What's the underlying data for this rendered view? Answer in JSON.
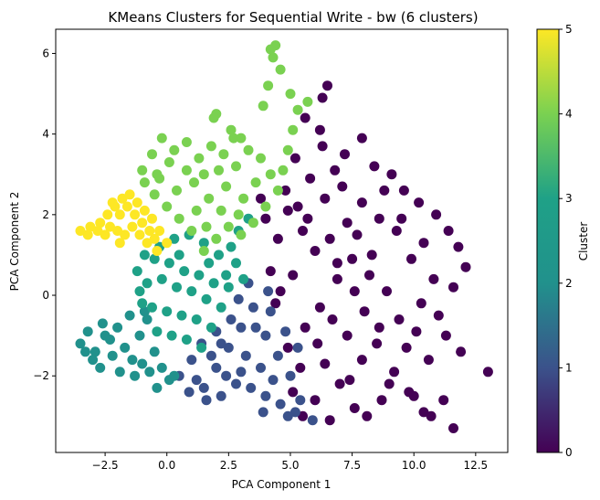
{
  "chart_data": {
    "type": "scatter",
    "title": "KMeans Clusters for Sequential Write - bw (6 clusters)",
    "xlabel": "PCA Component 1",
    "ylabel": "PCA Component 2",
    "xlim": [
      -4.5,
      13.8
    ],
    "ylim": [
      -3.9,
      6.6
    ],
    "xticks": [
      -2.5,
      0.0,
      2.5,
      5.0,
      7.5,
      10.0,
      12.5
    ],
    "xtick_labels": [
      "−2.5",
      "0.0",
      "2.5",
      "5.0",
      "7.5",
      "10.0",
      "12.5"
    ],
    "yticks": [
      -2,
      0,
      2,
      4,
      6
    ],
    "ytick_labels": [
      "−2",
      "0",
      "2",
      "4",
      "6"
    ],
    "grid": false,
    "colorbar": {
      "label": "Cluster",
      "range": [
        0,
        5
      ],
      "ticks": [
        0,
        1,
        2,
        3,
        4,
        5
      ],
      "tick_labels": [
        "0",
        "1",
        "2",
        "3",
        "4",
        "5"
      ],
      "colormap": "viridis"
    },
    "cluster_colors": [
      "#440154",
      "#3b528b",
      "#21918c",
      "#1fa187",
      "#7ad151",
      "#fde725"
    ],
    "series": [
      {
        "cluster": 0,
        "points": [
          [
            5.2,
            3.4
          ],
          [
            5.8,
            2.9
          ],
          [
            6.3,
            3.7
          ],
          [
            6.8,
            3.1
          ],
          [
            7.2,
            3.5
          ],
          [
            7.9,
            3.9
          ],
          [
            8.4,
            3.2
          ],
          [
            9.1,
            3.0
          ],
          [
            9.6,
            2.6
          ],
          [
            10.2,
            2.3
          ],
          [
            10.9,
            2.0
          ],
          [
            11.4,
            1.6
          ],
          [
            11.8,
            1.2
          ],
          [
            12.1,
            0.7
          ],
          [
            11.6,
            0.2
          ],
          [
            11.0,
            -0.5
          ],
          [
            11.3,
            -1.0
          ],
          [
            11.9,
            -1.4
          ],
          [
            13.0,
            -1.9
          ],
          [
            11.2,
            -2.6
          ],
          [
            11.6,
            -3.3
          ],
          [
            10.4,
            -2.9
          ],
          [
            9.8,
            -2.4
          ],
          [
            9.2,
            -1.9
          ],
          [
            8.7,
            -2.6
          ],
          [
            8.1,
            -3.0
          ],
          [
            7.6,
            -2.8
          ],
          [
            7.0,
            -2.2
          ],
          [
            6.4,
            -1.7
          ],
          [
            6.0,
            -2.6
          ],
          [
            5.5,
            -3.0
          ],
          [
            5.1,
            -2.4
          ],
          [
            4.9,
            -1.3
          ],
          [
            5.6,
            -0.8
          ],
          [
            6.2,
            -0.3
          ],
          [
            6.9,
            0.4
          ],
          [
            7.5,
            0.9
          ],
          [
            8.2,
            0.5
          ],
          [
            8.9,
            0.1
          ],
          [
            9.4,
            -0.6
          ],
          [
            10.1,
            -0.9
          ],
          [
            10.6,
            -1.6
          ],
          [
            9.9,
            0.9
          ],
          [
            9.3,
            1.6
          ],
          [
            8.6,
            1.9
          ],
          [
            7.9,
            2.3
          ],
          [
            7.3,
            1.8
          ],
          [
            6.6,
            1.4
          ],
          [
            6.0,
            1.1
          ],
          [
            5.5,
            1.6
          ],
          [
            4.9,
            2.1
          ],
          [
            4.5,
            1.4
          ],
          [
            4.2,
            0.6
          ],
          [
            4.6,
            0.1
          ],
          [
            5.1,
            0.5
          ],
          [
            5.7,
            1.9
          ],
          [
            6.4,
            2.4
          ],
          [
            7.1,
            2.7
          ],
          [
            7.7,
            1.5
          ],
          [
            8.3,
            1.0
          ],
          [
            8.8,
            2.6
          ],
          [
            9.5,
            1.9
          ],
          [
            10.4,
            1.3
          ],
          [
            10.8,
            0.4
          ],
          [
            10.3,
            -0.2
          ],
          [
            9.7,
            -1.3
          ],
          [
            8.5,
            -1.2
          ],
          [
            7.9,
            -1.6
          ],
          [
            7.3,
            -1.0
          ],
          [
            6.7,
            -0.6
          ],
          [
            6.1,
            -1.2
          ],
          [
            5.4,
            -1.8
          ],
          [
            6.6,
            -3.1
          ],
          [
            7.4,
            -2.1
          ],
          [
            8.0,
            -0.4
          ],
          [
            6.3,
            4.9
          ],
          [
            6.5,
            5.2
          ],
          [
            5.6,
            4.4
          ],
          [
            6.2,
            4.1
          ],
          [
            4.8,
            2.6
          ],
          [
            5.3,
            2.2
          ],
          [
            6.9,
            0.8
          ],
          [
            7.6,
            0.1
          ],
          [
            8.6,
            -0.8
          ],
          [
            9.0,
            -2.2
          ],
          [
            10.0,
            -2.5
          ],
          [
            10.7,
            -3.0
          ],
          [
            4.4,
            -0.2
          ],
          [
            4.0,
            1.9
          ],
          [
            3.8,
            2.4
          ]
        ]
      },
      {
        "cluster": 1,
        "points": [
          [
            1.5,
            -2.3
          ],
          [
            2.0,
            -1.8
          ],
          [
            2.5,
            -1.3
          ],
          [
            3.0,
            -0.8
          ],
          [
            3.5,
            -0.3
          ],
          [
            4.0,
            -1.0
          ],
          [
            4.5,
            -1.5
          ],
          [
            5.0,
            -2.0
          ],
          [
            5.4,
            -2.6
          ],
          [
            5.9,
            -3.1
          ],
          [
            5.2,
            -2.9
          ],
          [
            4.6,
            -2.7
          ],
          [
            4.0,
            -2.5
          ],
          [
            3.4,
            -2.3
          ],
          [
            2.8,
            -2.2
          ],
          [
            2.2,
            -2.5
          ],
          [
            1.6,
            -2.6
          ],
          [
            1.2,
            -2.1
          ],
          [
            1.0,
            -1.6
          ],
          [
            1.4,
            -1.2
          ],
          [
            2.0,
            -0.9
          ],
          [
            2.6,
            -0.6
          ],
          [
            3.2,
            -1.5
          ],
          [
            3.8,
            -1.8
          ],
          [
            4.3,
            -2.1
          ],
          [
            2.4,
            -2.0
          ],
          [
            3.0,
            -1.9
          ],
          [
            3.6,
            -0.8
          ],
          [
            4.2,
            -0.4
          ],
          [
            4.8,
            -0.9
          ],
          [
            3.3,
            0.3
          ],
          [
            2.9,
            -0.1
          ],
          [
            4.1,
            0.1
          ],
          [
            5.3,
            -1.3
          ],
          [
            1.8,
            -1.5
          ],
          [
            2.2,
            -1.2
          ],
          [
            3.9,
            -2.9
          ],
          [
            4.9,
            -3.0
          ],
          [
            0.5,
            -2.0
          ],
          [
            0.9,
            -2.4
          ]
        ]
      },
      {
        "cluster": 2,
        "points": [
          [
            -3.5,
            -1.2
          ],
          [
            -3.2,
            -0.9
          ],
          [
            -2.9,
            -1.4
          ],
          [
            -2.6,
            -0.7
          ],
          [
            -2.3,
            -1.1
          ],
          [
            -2.0,
            -0.8
          ],
          [
            -1.7,
            -1.3
          ],
          [
            -1.4,
            -1.6
          ],
          [
            -1.1,
            -1.0
          ],
          [
            -0.8,
            -0.6
          ],
          [
            -0.5,
            -1.4
          ],
          [
            -0.2,
            -1.8
          ],
          [
            0.1,
            -2.1
          ],
          [
            -0.7,
            -1.9
          ],
          [
            -1.3,
            -2.0
          ],
          [
            -2.2,
            -1.5
          ],
          [
            -3.0,
            -1.6
          ],
          [
            -3.3,
            -1.4
          ],
          [
            -2.7,
            -1.8
          ],
          [
            -1.9,
            -1.9
          ],
          [
            -1.0,
            -1.7
          ],
          [
            -0.4,
            -2.3
          ],
          [
            0.3,
            -2.0
          ],
          [
            -1.5,
            -0.5
          ],
          [
            -2.5,
            -1.0
          ],
          [
            -0.9,
            -0.4
          ]
        ]
      },
      {
        "cluster": 3,
        "points": [
          [
            -1.2,
            0.6
          ],
          [
            -0.8,
            0.3
          ],
          [
            -0.5,
            0.9
          ],
          [
            -0.2,
            0.4
          ],
          [
            0.1,
            0.8
          ],
          [
            0.4,
            0.2
          ],
          [
            0.7,
            0.6
          ],
          [
            1.0,
            0.1
          ],
          [
            1.3,
            0.5
          ],
          [
            1.6,
            -0.1
          ],
          [
            1.9,
            0.3
          ],
          [
            2.2,
            -0.3
          ],
          [
            2.5,
            0.2
          ],
          [
            2.8,
            0.8
          ],
          [
            3.1,
            0.4
          ],
          [
            2.6,
            1.2
          ],
          [
            2.1,
            1.0
          ],
          [
            1.5,
            1.3
          ],
          [
            0.9,
            1.5
          ],
          [
            0.3,
            1.4
          ],
          [
            -0.3,
            1.2
          ],
          [
            -0.9,
            1.0
          ],
          [
            -1.1,
            0.1
          ],
          [
            -0.6,
            -0.3
          ],
          [
            0.0,
            -0.4
          ],
          [
            0.6,
            -0.5
          ],
          [
            1.2,
            -0.6
          ],
          [
            1.8,
            -0.8
          ],
          [
            -0.4,
            -0.9
          ],
          [
            0.2,
            -1.0
          ],
          [
            0.8,
            -1.1
          ],
          [
            1.4,
            -1.3
          ],
          [
            -1.0,
            -0.2
          ],
          [
            2.9,
            1.6
          ],
          [
            3.3,
            1.9
          ],
          [
            2.4,
            0.5
          ],
          [
            1.7,
            0.8
          ],
          [
            0.5,
            1.0
          ]
        ]
      },
      {
        "cluster": 4,
        "points": [
          [
            -1.0,
            3.1
          ],
          [
            -0.6,
            3.5
          ],
          [
            -0.2,
            3.9
          ],
          [
            0.3,
            3.6
          ],
          [
            0.8,
            3.8
          ],
          [
            1.3,
            3.4
          ],
          [
            1.8,
            3.7
          ],
          [
            2.3,
            3.5
          ],
          [
            2.8,
            3.2
          ],
          [
            3.3,
            3.6
          ],
          [
            3.8,
            3.4
          ],
          [
            4.2,
            3.0
          ],
          [
            4.5,
            2.6
          ],
          [
            4.0,
            2.2
          ],
          [
            3.5,
            1.8
          ],
          [
            3.0,
            1.5
          ],
          [
            2.5,
            1.7
          ],
          [
            2.0,
            1.4
          ],
          [
            1.5,
            1.1
          ],
          [
            1.0,
            1.6
          ],
          [
            0.5,
            1.9
          ],
          [
            0.0,
            2.2
          ],
          [
            -0.5,
            2.5
          ],
          [
            -0.9,
            2.8
          ],
          [
            -0.3,
            2.9
          ],
          [
            0.4,
            2.6
          ],
          [
            1.1,
            2.8
          ],
          [
            1.7,
            2.4
          ],
          [
            2.4,
            2.7
          ],
          [
            3.1,
            2.4
          ],
          [
            3.6,
            2.8
          ],
          [
            0.8,
            3.1
          ],
          [
            1.5,
            3.0
          ],
          [
            2.1,
            3.1
          ],
          [
            2.7,
            3.9
          ],
          [
            2.0,
            4.5
          ],
          [
            1.9,
            4.4
          ],
          [
            2.6,
            4.1
          ],
          [
            3.0,
            3.9
          ],
          [
            3.9,
            4.7
          ],
          [
            4.1,
            5.2
          ],
          [
            4.3,
            5.9
          ],
          [
            4.4,
            6.2
          ],
          [
            4.2,
            6.1
          ],
          [
            4.6,
            5.6
          ],
          [
            5.0,
            5.0
          ],
          [
            5.3,
            4.6
          ],
          [
            5.7,
            4.8
          ],
          [
            4.9,
            3.6
          ],
          [
            4.7,
            3.1
          ],
          [
            5.1,
            4.1
          ],
          [
            0.1,
            3.3
          ],
          [
            -0.4,
            3.0
          ],
          [
            1.2,
            2.1
          ],
          [
            2.2,
            2.1
          ],
          [
            2.9,
            2.0
          ],
          [
            1.6,
            1.7
          ]
        ]
      },
      {
        "cluster": 5,
        "points": [
          [
            -3.5,
            1.6
          ],
          [
            -3.1,
            1.7
          ],
          [
            -2.7,
            1.8
          ],
          [
            -2.4,
            2.0
          ],
          [
            -2.1,
            2.2
          ],
          [
            -1.8,
            2.4
          ],
          [
            -1.5,
            2.5
          ],
          [
            -1.2,
            2.3
          ],
          [
            -0.9,
            2.1
          ],
          [
            -0.6,
            1.9
          ],
          [
            -0.3,
            1.6
          ],
          [
            0.0,
            1.3
          ],
          [
            -0.4,
            1.1
          ],
          [
            -0.8,
            1.3
          ],
          [
            -1.1,
            1.5
          ],
          [
            -1.4,
            1.7
          ],
          [
            -1.7,
            1.5
          ],
          [
            -2.0,
            1.6
          ],
          [
            -2.3,
            1.7
          ],
          [
            -2.8,
            1.6
          ],
          [
            -3.2,
            1.5
          ],
          [
            -2.5,
            1.5
          ],
          [
            -1.9,
            2.0
          ],
          [
            -1.3,
            2.0
          ],
          [
            -0.7,
            1.6
          ],
          [
            -2.2,
            2.3
          ],
          [
            -1.6,
            2.2
          ],
          [
            -1.0,
            1.8
          ],
          [
            -0.5,
            1.4
          ],
          [
            -1.9,
            1.3
          ]
        ]
      }
    ]
  }
}
